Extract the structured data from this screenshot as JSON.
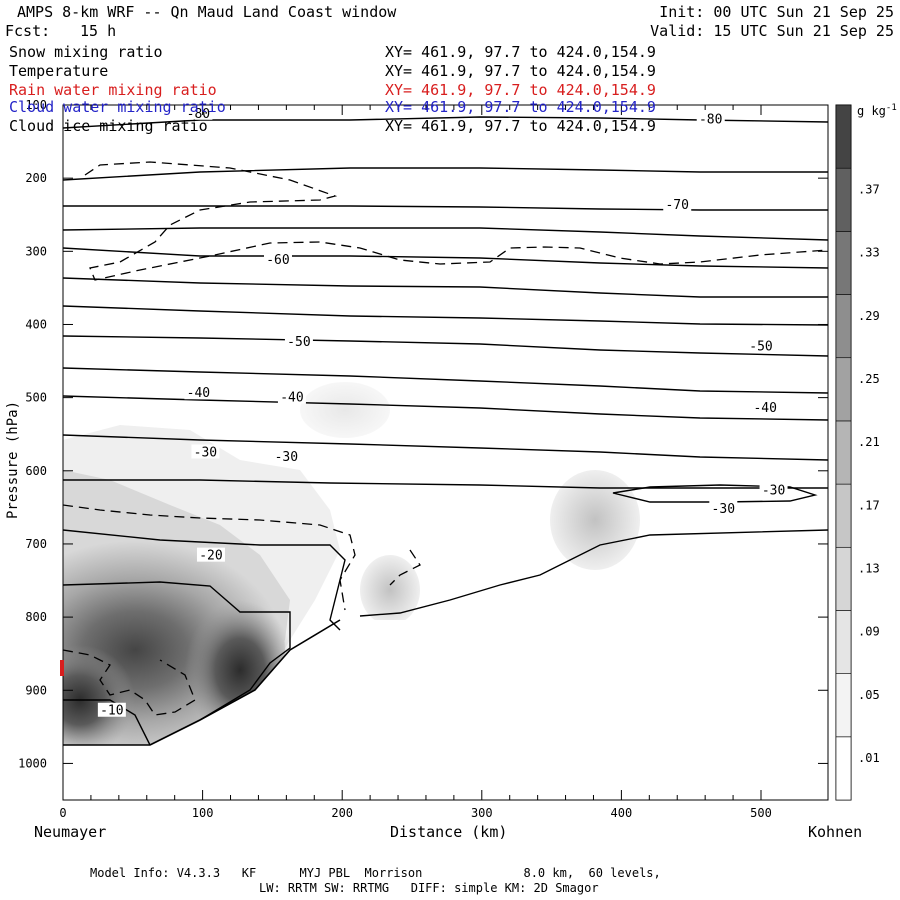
{
  "header": {
    "title": "AMPS 8-km WRF -- Qn Maud Land Coast window",
    "fcst_label": "Fcst:",
    "fcst_value": "15 h",
    "init": "Init: 00 UTC Sun 21 Sep 25",
    "valid": "Valid: 15 UTC Sun 21 Sep 25"
  },
  "fields": [
    {
      "name": "Snow mixing ratio",
      "xy": "XY= 461.9, 97.7 to 424.0,154.9",
      "color": "#000000"
    },
    {
      "name": "Temperature",
      "xy": "XY= 461.9, 97.7 to 424.0,154.9",
      "color": "#000000"
    },
    {
      "name": "Rain water mixing ratio",
      "xy": "XY= 461.9, 97.7 to 424.0,154.9",
      "color": "#d81e1e"
    },
    {
      "name": "Cloud water mixing ratio",
      "xy": "XY= 461.9, 97.7 to 424.0,154.9",
      "color": "#2424c8"
    },
    {
      "name": "Cloud ice mixing ratio",
      "xy": "XY= 461.9, 97.7 to 424.0,154.9",
      "color": "#000000"
    }
  ],
  "footer": {
    "line1": "Model Info: V4.3.3   KF      MYJ PBL  Morrison              8.0 km,  60 levels,",
    "line2": "LW: RRTM SW: RRTMG   DIFF: simple KM: 2D Smagor"
  },
  "chart_data": {
    "type": "cross-section",
    "xlabel": "Distance (km)",
    "ylabel": "Pressure (hPa)",
    "x_left_label": "Neumayer",
    "x_right_label": "Kohnen",
    "xlim": [
      0,
      548
    ],
    "ylim": [
      1050,
      100
    ],
    "x_ticks": [
      0,
      100,
      200,
      300,
      400,
      500
    ],
    "y_ticks": [
      100,
      200,
      300,
      400,
      500,
      600,
      700,
      800,
      900,
      1000
    ],
    "colorbar": {
      "unit": "g kg",
      "unit_exp": "-1",
      "levels": [
        0.01,
        0.05,
        0.09,
        0.13,
        0.17,
        0.21,
        0.25,
        0.29,
        0.33,
        0.37
      ],
      "level_labels": [
        ".01",
        ".05",
        ".09",
        ".13",
        ".17",
        ".21",
        ".25",
        ".29",
        ".33",
        ".37"
      ]
    },
    "temperature_labels": [
      {
        "text": "-80",
        "x": 97,
        "p": 112
      },
      {
        "text": "-80",
        "x": 464,
        "p": 120
      },
      {
        "text": "-70",
        "x": 440,
        "p": 237
      },
      {
        "text": "-60",
        "x": 154,
        "p": 312
      },
      {
        "text": "-50",
        "x": 169,
        "p": 424
      },
      {
        "text": "-50",
        "x": 500,
        "p": 430
      },
      {
        "text": "-40",
        "x": 97,
        "p": 494
      },
      {
        "text": "-40",
        "x": 164,
        "p": 500
      },
      {
        "text": "-40",
        "x": 503,
        "p": 514
      },
      {
        "text": "-30",
        "x": 102,
        "p": 575
      },
      {
        "text": "-30",
        "x": 160,
        "p": 581
      },
      {
        "text": "-30",
        "x": 509,
        "p": 627
      },
      {
        "text": "-30",
        "x": 473,
        "p": 652
      },
      {
        "text": "-20",
        "x": 106,
        "p": 716
      },
      {
        "text": "-10",
        "x": 35,
        "p": 928
      }
    ]
  }
}
